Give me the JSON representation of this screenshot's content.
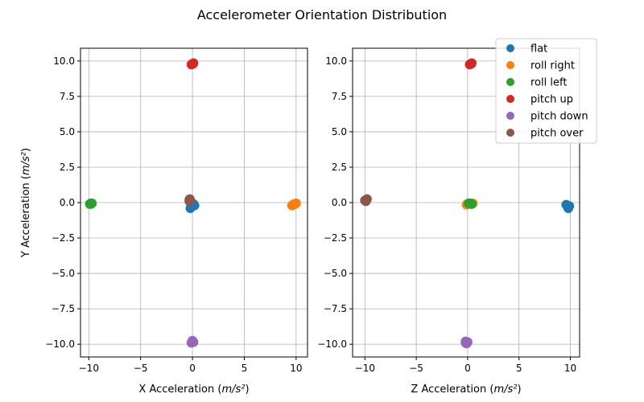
{
  "figure": {
    "title": "Accelerometer Orientation Distribution"
  },
  "legend": {
    "placement": "top-right",
    "entries": [
      {
        "name": "flat",
        "color": "#1f77b4"
      },
      {
        "name": "roll right",
        "color": "#ff7f0e"
      },
      {
        "name": "roll left",
        "color": "#2ca02c"
      },
      {
        "name": "pitch up",
        "color": "#d62728"
      },
      {
        "name": "pitch down",
        "color": "#9467bd"
      },
      {
        "name": "pitch over",
        "color": "#8c564b"
      }
    ]
  },
  "chart_data": [
    {
      "type": "scatter",
      "xlabel": "X Acceleration ",
      "xunit": "m/s²",
      "ylabel": "Y Acceleration ",
      "yunit": "m/s²",
      "xlim": [
        -10.8,
        11.1
      ],
      "ylim": [
        -10.9,
        10.9
      ],
      "xticks": [
        -10,
        -5,
        0,
        5,
        10
      ],
      "xtick_labels": [
        "−10",
        "−5",
        "0",
        "5",
        "10"
      ],
      "yticks": [
        10.0,
        7.5,
        5.0,
        2.5,
        0.0,
        -2.5,
        -5.0,
        -7.5,
        -10.0
      ],
      "ytick_labels": [
        "10.0",
        "7.5",
        "5.0",
        "2.5",
        "0.0",
        "−2.5",
        "−5.0",
        "−7.5",
        "−10.0"
      ],
      "grid": true,
      "series": [
        {
          "name": "flat",
          "points": [
            [
              0.0,
              -0.2
            ],
            [
              -0.2,
              -0.4
            ],
            [
              0.1,
              -0.1
            ],
            [
              -0.1,
              -0.3
            ],
            [
              0.2,
              -0.2
            ]
          ]
        },
        {
          "name": "roll right",
          "points": [
            [
              9.8,
              -0.1
            ],
            [
              9.6,
              -0.2
            ],
            [
              10.0,
              -0.05
            ],
            [
              9.7,
              -0.15
            ],
            [
              9.9,
              -0.1
            ]
          ]
        },
        {
          "name": "roll left",
          "points": [
            [
              -9.8,
              -0.05
            ],
            [
              -9.9,
              -0.1
            ],
            [
              -9.7,
              -0.05
            ],
            [
              -9.8,
              -0.1
            ]
          ]
        },
        {
          "name": "pitch up",
          "points": [
            [
              0.0,
              9.8
            ],
            [
              0.1,
              9.85
            ],
            [
              -0.1,
              9.75
            ],
            [
              0.05,
              9.8
            ]
          ]
        },
        {
          "name": "pitch down",
          "points": [
            [
              0.0,
              -9.8
            ],
            [
              -0.1,
              -9.9
            ],
            [
              0.1,
              -9.85
            ],
            [
              0.0,
              -9.75
            ]
          ]
        },
        {
          "name": "pitch over",
          "points": [
            [
              -0.3,
              0.2
            ],
            [
              -0.2,
              0.15
            ],
            [
              -0.25,
              0.25
            ],
            [
              -0.3,
              0.1
            ]
          ]
        }
      ]
    },
    {
      "type": "scatter",
      "xlabel": "Z Acceleration ",
      "xunit": "m/s²",
      "ylabel": "",
      "yunit": "",
      "xlim": [
        -11.2,
        10.9
      ],
      "ylim": [
        -10.9,
        10.9
      ],
      "xticks": [
        -10,
        -5,
        0,
        5,
        10
      ],
      "xtick_labels": [
        "−10",
        "−5",
        "0",
        "5",
        "10"
      ],
      "yticks": [
        10.0,
        7.5,
        5.0,
        2.5,
        0.0,
        -2.5,
        -5.0,
        -7.5,
        -10.0
      ],
      "ytick_labels": [
        "10.0",
        "7.5",
        "5.0",
        "2.5",
        "0.0",
        "−2.5",
        "−5.0",
        "−7.5",
        "−10.0"
      ],
      "grid": true,
      "series": [
        {
          "name": "flat",
          "points": [
            [
              9.7,
              -0.2
            ],
            [
              9.8,
              -0.4
            ],
            [
              9.9,
              -0.25
            ],
            [
              9.6,
              -0.15
            ],
            [
              9.75,
              -0.3
            ]
          ]
        },
        {
          "name": "roll right",
          "points": [
            [
              0.0,
              -0.1
            ],
            [
              0.3,
              -0.1
            ],
            [
              0.5,
              -0.05
            ],
            [
              -0.1,
              -0.15
            ],
            [
              0.2,
              -0.05
            ]
          ]
        },
        {
          "name": "roll left",
          "points": [
            [
              0.2,
              -0.05
            ],
            [
              0.3,
              -0.1
            ],
            [
              0.1,
              -0.05
            ],
            [
              0.4,
              -0.1
            ]
          ]
        },
        {
          "name": "pitch up",
          "points": [
            [
              0.3,
              9.8
            ],
            [
              0.4,
              9.85
            ],
            [
              0.2,
              9.75
            ],
            [
              0.35,
              9.8
            ]
          ]
        },
        {
          "name": "pitch down",
          "points": [
            [
              -0.2,
              -9.8
            ],
            [
              -0.1,
              -9.95
            ],
            [
              0.0,
              -9.85
            ],
            [
              -0.2,
              -9.9
            ]
          ]
        },
        {
          "name": "pitch over",
          "points": [
            [
              -9.9,
              0.2
            ],
            [
              -10.0,
              0.15
            ],
            [
              -9.8,
              0.25
            ],
            [
              -9.9,
              0.1
            ]
          ]
        }
      ]
    }
  ]
}
